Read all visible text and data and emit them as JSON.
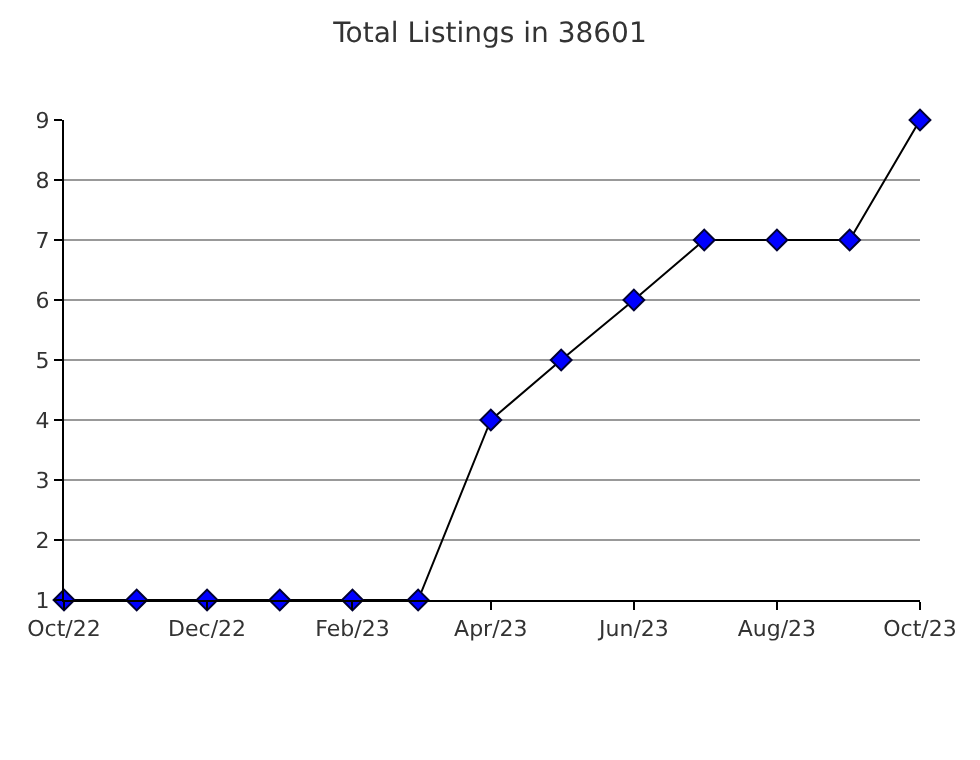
{
  "chart_data": {
    "type": "line",
    "title": "Total Listings in 38601",
    "x": [
      "2022-10",
      "2022-11",
      "2022-12",
      "2023-01",
      "2023-02",
      "2023-03",
      "2023-04",
      "2023-05",
      "2023-06",
      "2023-07",
      "2023-08",
      "2023-09",
      "2023-10"
    ],
    "series": [
      {
        "color": "#0000ff",
        "values": [
          1,
          1,
          1,
          1,
          1,
          1,
          4,
          5,
          6,
          7,
          7,
          7,
          9
        ]
      }
    ],
    "xlim": [
      "2022-10",
      "2023-10"
    ],
    "xticks": [
      {
        "value": "2022-10",
        "label": "Oct/22"
      },
      {
        "value": "2022-12",
        "label": "Dec/22"
      },
      {
        "value": "2023-02",
        "label": "Feb/23"
      },
      {
        "value": "2023-04",
        "label": "Apr/23"
      },
      {
        "value": "2023-06",
        "label": "Jun/23"
      },
      {
        "value": "2023-08",
        "label": "Aug/23"
      },
      {
        "value": "2023-10",
        "label": "Oct/23"
      }
    ],
    "ylim": [
      1,
      9
    ],
    "yticks": [
      1,
      2,
      3,
      4,
      5,
      6,
      7,
      8,
      9
    ],
    "grid": "y",
    "marker": "diamond",
    "line_style": "solid"
  }
}
